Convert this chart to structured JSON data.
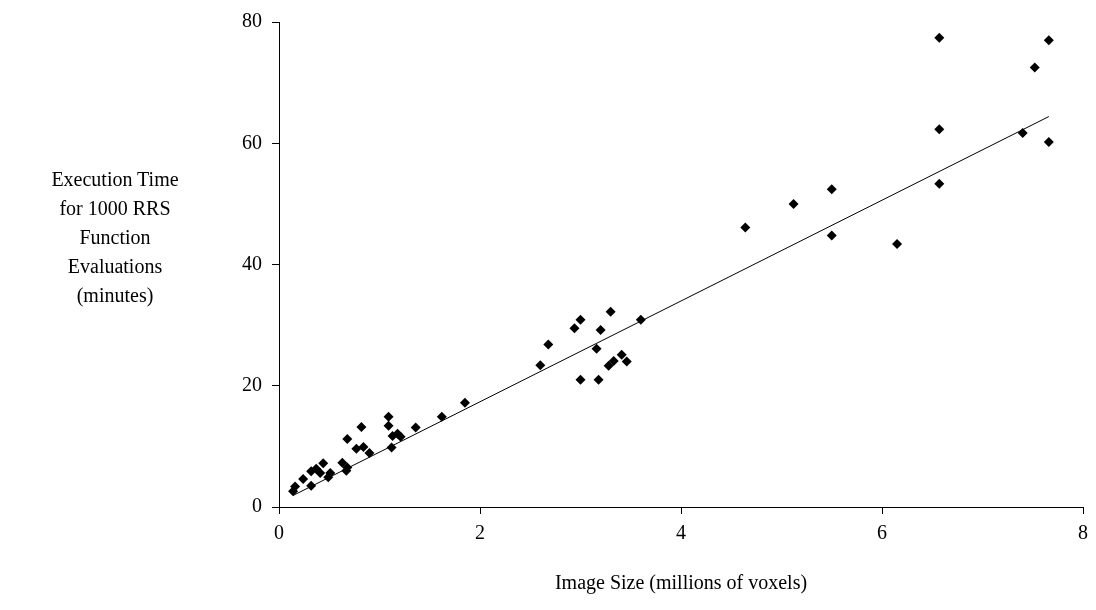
{
  "chart_data": {
    "type": "scatter",
    "xlabel": "Image Size (millions of voxels)",
    "ylabel": "Execution Time for 1000 RRS Function Evaluations (minutes)",
    "xlim": [
      0,
      8
    ],
    "xticks": [
      0,
      2,
      4,
      6,
      8
    ],
    "ylim": [
      0,
      80
    ],
    "yticks": [
      0,
      20,
      40,
      60,
      80
    ],
    "grid": false,
    "legend": false,
    "marker": "diamond",
    "series": [
      {
        "color": "#000000",
        "x": [
          0.14,
          0.16,
          0.24,
          0.32,
          0.32,
          0.37,
          0.44,
          0.41,
          0.49,
          0.51,
          0.63,
          0.67,
          0.68,
          0.68,
          0.82,
          0.77,
          0.84,
          0.9,
          1.09,
          1.09,
          1.13,
          1.12,
          1.21,
          1.18,
          1.36,
          1.62,
          1.85,
          2.6,
          2.68,
          2.94,
          3.0,
          3.3,
          3.2,
          3.16,
          3.0,
          3.18,
          3.28,
          3.33,
          3.41,
          3.46,
          3.6,
          4.64,
          5.12,
          5.5,
          5.5,
          6.15,
          6.57,
          6.57,
          6.57,
          7.4,
          7.52,
          7.66,
          7.66
        ],
        "values": [
          2.6,
          3.4,
          4.6,
          3.5,
          5.9,
          6.3,
          7.2,
          5.6,
          4.9,
          5.6,
          7.3,
          6.0,
          6.5,
          11.2,
          13.2,
          9.6,
          9.9,
          8.9,
          14.9,
          13.4,
          11.7,
          9.8,
          11.6,
          12.1,
          13.1,
          14.9,
          17.2,
          23.4,
          26.8,
          29.5,
          30.9,
          32.2,
          29.2,
          26.1,
          21.0,
          21.0,
          23.3,
          24.1,
          25.1,
          24.0,
          30.9,
          46.1,
          50.0,
          52.4,
          44.8,
          43.4,
          77.4,
          62.3,
          53.3,
          61.7,
          72.5,
          77.0,
          60.2
        ]
      },
      {
        "type": "line",
        "color": "#000000",
        "marker": "none",
        "x": [
          0.14,
          7.66
        ],
        "values": [
          1.9,
          64.4
        ]
      }
    ]
  }
}
